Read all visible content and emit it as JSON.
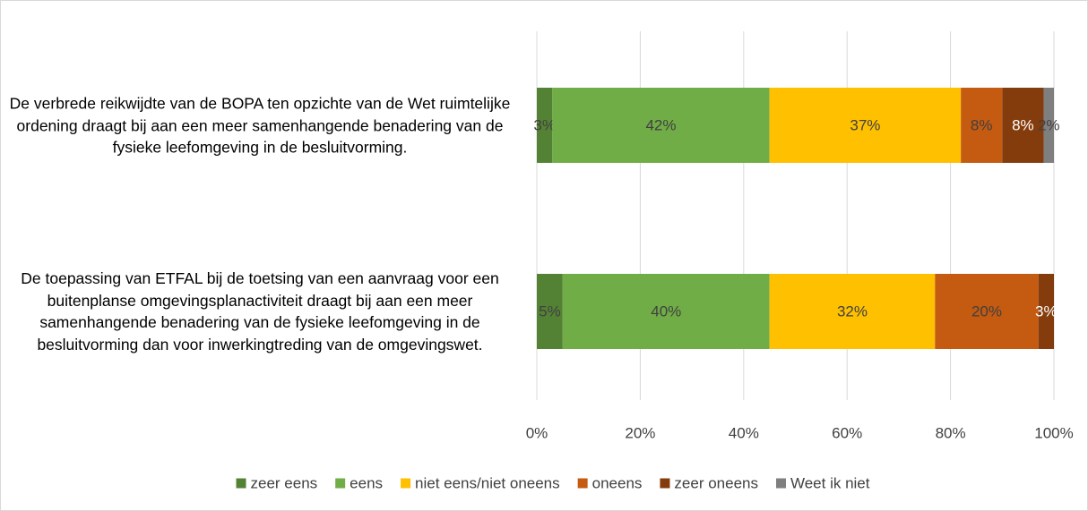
{
  "chart_data": {
    "type": "stacked_barh",
    "categories": [
      "De verbrede reikwijdte van de BOPA ten opzichte van de Wet ruimtelijke ordening draagt bij aan een meer samenhangende benadering van de fysieke leefomgeving in de besluitvorming.",
      "De toepassing van ETFAL bij de toetsing van een aanvraag voor een buitenplanse omgevingsplanactiviteit draagt bij aan een meer samenhangende benadering van de fysieke leefomgeving in de besluitvorming dan voor inwerkingtreding van de omgevingswet."
    ],
    "series": [
      {
        "name": "zeer eens",
        "color": "#548235",
        "values": [
          3,
          5
        ],
        "value_labels": [
          "3%",
          "5%"
        ]
      },
      {
        "name": "eens",
        "color": "#70ad47",
        "values": [
          42,
          40
        ],
        "value_labels": [
          "42%",
          "40%"
        ]
      },
      {
        "name": "niet eens/niet oneens",
        "color": "#ffc000",
        "values": [
          37,
          32
        ],
        "value_labels": [
          "37%",
          "32%"
        ]
      },
      {
        "name": "oneens",
        "color": "#c55a11",
        "values": [
          8,
          20
        ],
        "value_labels": [
          "8%",
          "20%"
        ]
      },
      {
        "name": "zeer oneens",
        "color": "#843c0c",
        "values": [
          8,
          3
        ],
        "value_labels": [
          "8%",
          "3%"
        ]
      },
      {
        "name": "Weet ik niet",
        "color": "#7f7f7f",
        "values": [
          2,
          null
        ],
        "value_labels": [
          "2%",
          null
        ]
      }
    ],
    "xlim": [
      0,
      100
    ],
    "xticks": [
      {
        "value": 0,
        "label": "0%"
      },
      {
        "value": 20,
        "label": "20%"
      },
      {
        "value": 40,
        "label": "40%"
      },
      {
        "value": 60,
        "label": "60%"
      },
      {
        "value": 80,
        "label": "80%"
      },
      {
        "value": 100,
        "label": "100%"
      }
    ],
    "grid": true,
    "legend": "bottom"
  }
}
